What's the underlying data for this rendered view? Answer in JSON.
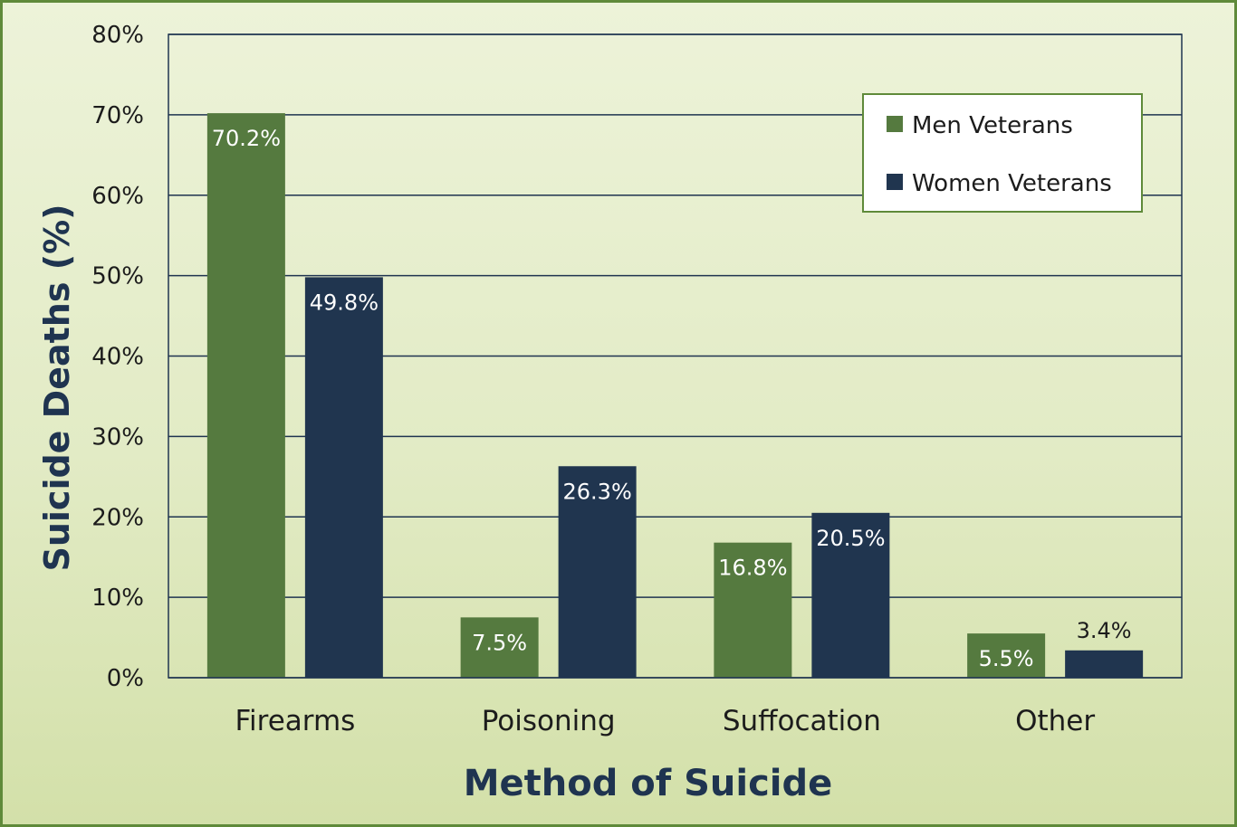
{
  "chart_data": {
    "type": "bar",
    "categories": [
      "Firearms",
      "Poisoning",
      "Suffocation",
      "Other"
    ],
    "series": [
      {
        "name": "Men Veterans",
        "values": [
          70.2,
          7.5,
          16.8,
          5.5
        ],
        "labels": [
          "70.2%",
          "7.5%",
          "16.8%",
          "5.5%"
        ],
        "color": "#557a3f"
      },
      {
        "name": "Women Veterans",
        "values": [
          49.8,
          26.3,
          20.5,
          3.4
        ],
        "labels": [
          "49.8%",
          "26.3%",
          "20.5%",
          "3.4%"
        ],
        "color": "#20354f"
      }
    ],
    "xlabel": "Method of Suicide",
    "ylabel": "Suicide Deaths (%)",
    "ylim": [
      0,
      80
    ],
    "yticks": [
      0,
      10,
      20,
      30,
      40,
      50,
      60,
      70,
      80
    ],
    "ytick_labels": [
      "0%",
      "10%",
      "20%",
      "30%",
      "40%",
      "50%",
      "60%",
      "70%",
      "80%"
    ],
    "grid": true,
    "legend_position": "top-right"
  }
}
